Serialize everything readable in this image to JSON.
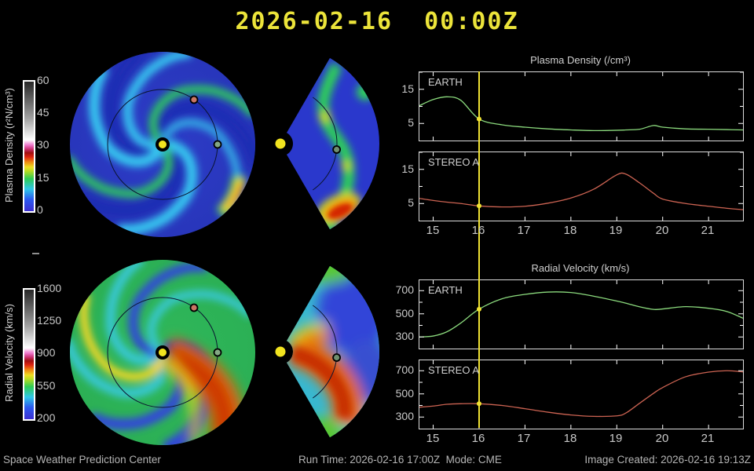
{
  "title": "2026-02-16  00:00Z",
  "colorbars": {
    "density": {
      "label": "Plasma Density (r²N/cm³)",
      "ticks": [
        "60",
        "45",
        "30",
        "15",
        "0"
      ]
    },
    "velocity": {
      "label": "Radial Velocity (km/s)",
      "ticks": [
        "1600",
        "1250",
        "900",
        "550",
        "200"
      ]
    }
  },
  "charts": {
    "xtick_labels": [
      "15",
      "16",
      "17",
      "18",
      "19",
      "20",
      "21"
    ],
    "density": {
      "title": "Plasma Density (/cm³)",
      "earth_label": "EARTH",
      "stereo_label": "STEREO A",
      "ytick_labels": [
        "15",
        "5"
      ]
    },
    "velocity": {
      "title": "Radial Velocity (km/s)",
      "earth_label": "EARTH",
      "stereo_label": "STEREO A",
      "ytick_labels": [
        "700",
        "500",
        "300"
      ]
    }
  },
  "footer": {
    "left": "Space Weather Prediction Center",
    "run": "Run Time: 2026-02-16 17:00Z  Mode: CME",
    "created": "Image Created: 2026-02-16 19:13Z"
  },
  "chart_data": [
    {
      "target": "d_earth",
      "type": "line",
      "title": "Plasma Density (/cm³)",
      "series_name": "EARTH",
      "color": "#8bda7d",
      "now_x": 16,
      "now_color": "#f0e232",
      "xlim": [
        14.7,
        21.75
      ],
      "ylim": [
        0,
        20
      ],
      "xticks": [
        15,
        16,
        17,
        18,
        19,
        20,
        21
      ],
      "yticks_major": [
        5,
        15
      ],
      "yticks_minor": [
        10,
        20
      ],
      "x": [
        14.7,
        15,
        15.3,
        15.6,
        16,
        16.5,
        17,
        17.5,
        18,
        18.5,
        19,
        19.2,
        19.5,
        19.8,
        20,
        20.5,
        21,
        21.4,
        21.75
      ],
      "values": [
        10.2,
        12.0,
        12.8,
        11.8,
        6.3,
        4.6,
        3.9,
        3.4,
        3.1,
        2.9,
        3.0,
        3.1,
        3.3,
        4.4,
        3.9,
        3.4,
        3.3,
        3.2,
        3.1
      ]
    },
    {
      "target": "d_stereo",
      "type": "line",
      "title": "Plasma Density (/cm³)",
      "series_name": "STEREO A",
      "color": "#cc6352",
      "now_x": 16,
      "now_color": "#f0e232",
      "xlim": [
        14.7,
        21.75
      ],
      "ylim": [
        0,
        20
      ],
      "xticks": [
        15,
        16,
        17,
        18,
        19,
        20,
        21
      ],
      "yticks_major": [
        5,
        15
      ],
      "yticks_minor": [
        10,
        20
      ],
      "x": [
        14.7,
        15,
        15.3,
        15.6,
        16,
        16.5,
        17,
        17.5,
        18,
        18.5,
        19,
        19.2,
        19.5,
        19.8,
        20,
        20.5,
        21,
        21.4,
        21.75
      ],
      "values": [
        6.5,
        5.9,
        5.4,
        5.0,
        4.3,
        4.0,
        4.2,
        5.1,
        6.6,
        9.2,
        13.4,
        13.6,
        11.0,
        8.0,
        6.3,
        5.0,
        4.2,
        3.6,
        3.2
      ]
    },
    {
      "target": "v_earth",
      "type": "line",
      "title": "Radial Velocity (km/s)",
      "series_name": "EARTH",
      "color": "#8bda7d",
      "now_x": 16,
      "now_color": "#f0e232",
      "xlim": [
        14.7,
        21.75
      ],
      "ylim": [
        200,
        790
      ],
      "xticks": [
        15,
        16,
        17,
        18,
        19,
        20,
        21
      ],
      "yticks_major": [
        300,
        500,
        700
      ],
      "yticks_minor": [
        400,
        600
      ],
      "x": [
        14.7,
        15,
        15.3,
        15.6,
        16,
        16.5,
        17,
        17.5,
        18,
        18.5,
        19,
        19.2,
        19.5,
        19.8,
        20,
        20.5,
        21,
        21.4,
        21.75
      ],
      "values": [
        300,
        308,
        345,
        420,
        540,
        630,
        668,
        688,
        684,
        652,
        610,
        592,
        560,
        538,
        542,
        562,
        548,
        520,
        462
      ]
    },
    {
      "target": "v_stereo",
      "type": "line",
      "title": "Radial Velocity (km/s)",
      "series_name": "STEREO A",
      "color": "#cc6352",
      "now_x": 16,
      "now_color": "#f0e232",
      "xlim": [
        14.7,
        21.75
      ],
      "ylim": [
        200,
        790
      ],
      "xticks": [
        15,
        16,
        17,
        18,
        19,
        20,
        21
      ],
      "yticks_major": [
        300,
        500,
        700
      ],
      "yticks_minor": [
        400,
        600
      ],
      "x": [
        14.7,
        15,
        15.3,
        15.6,
        16,
        16.5,
        17,
        17.5,
        18,
        18.5,
        19,
        19.2,
        19.5,
        19.8,
        20,
        20.5,
        21,
        21.4,
        21.75
      ],
      "values": [
        385,
        395,
        410,
        415,
        415,
        400,
        372,
        342,
        318,
        306,
        310,
        335,
        420,
        505,
        555,
        648,
        688,
        700,
        690
      ]
    }
  ]
}
